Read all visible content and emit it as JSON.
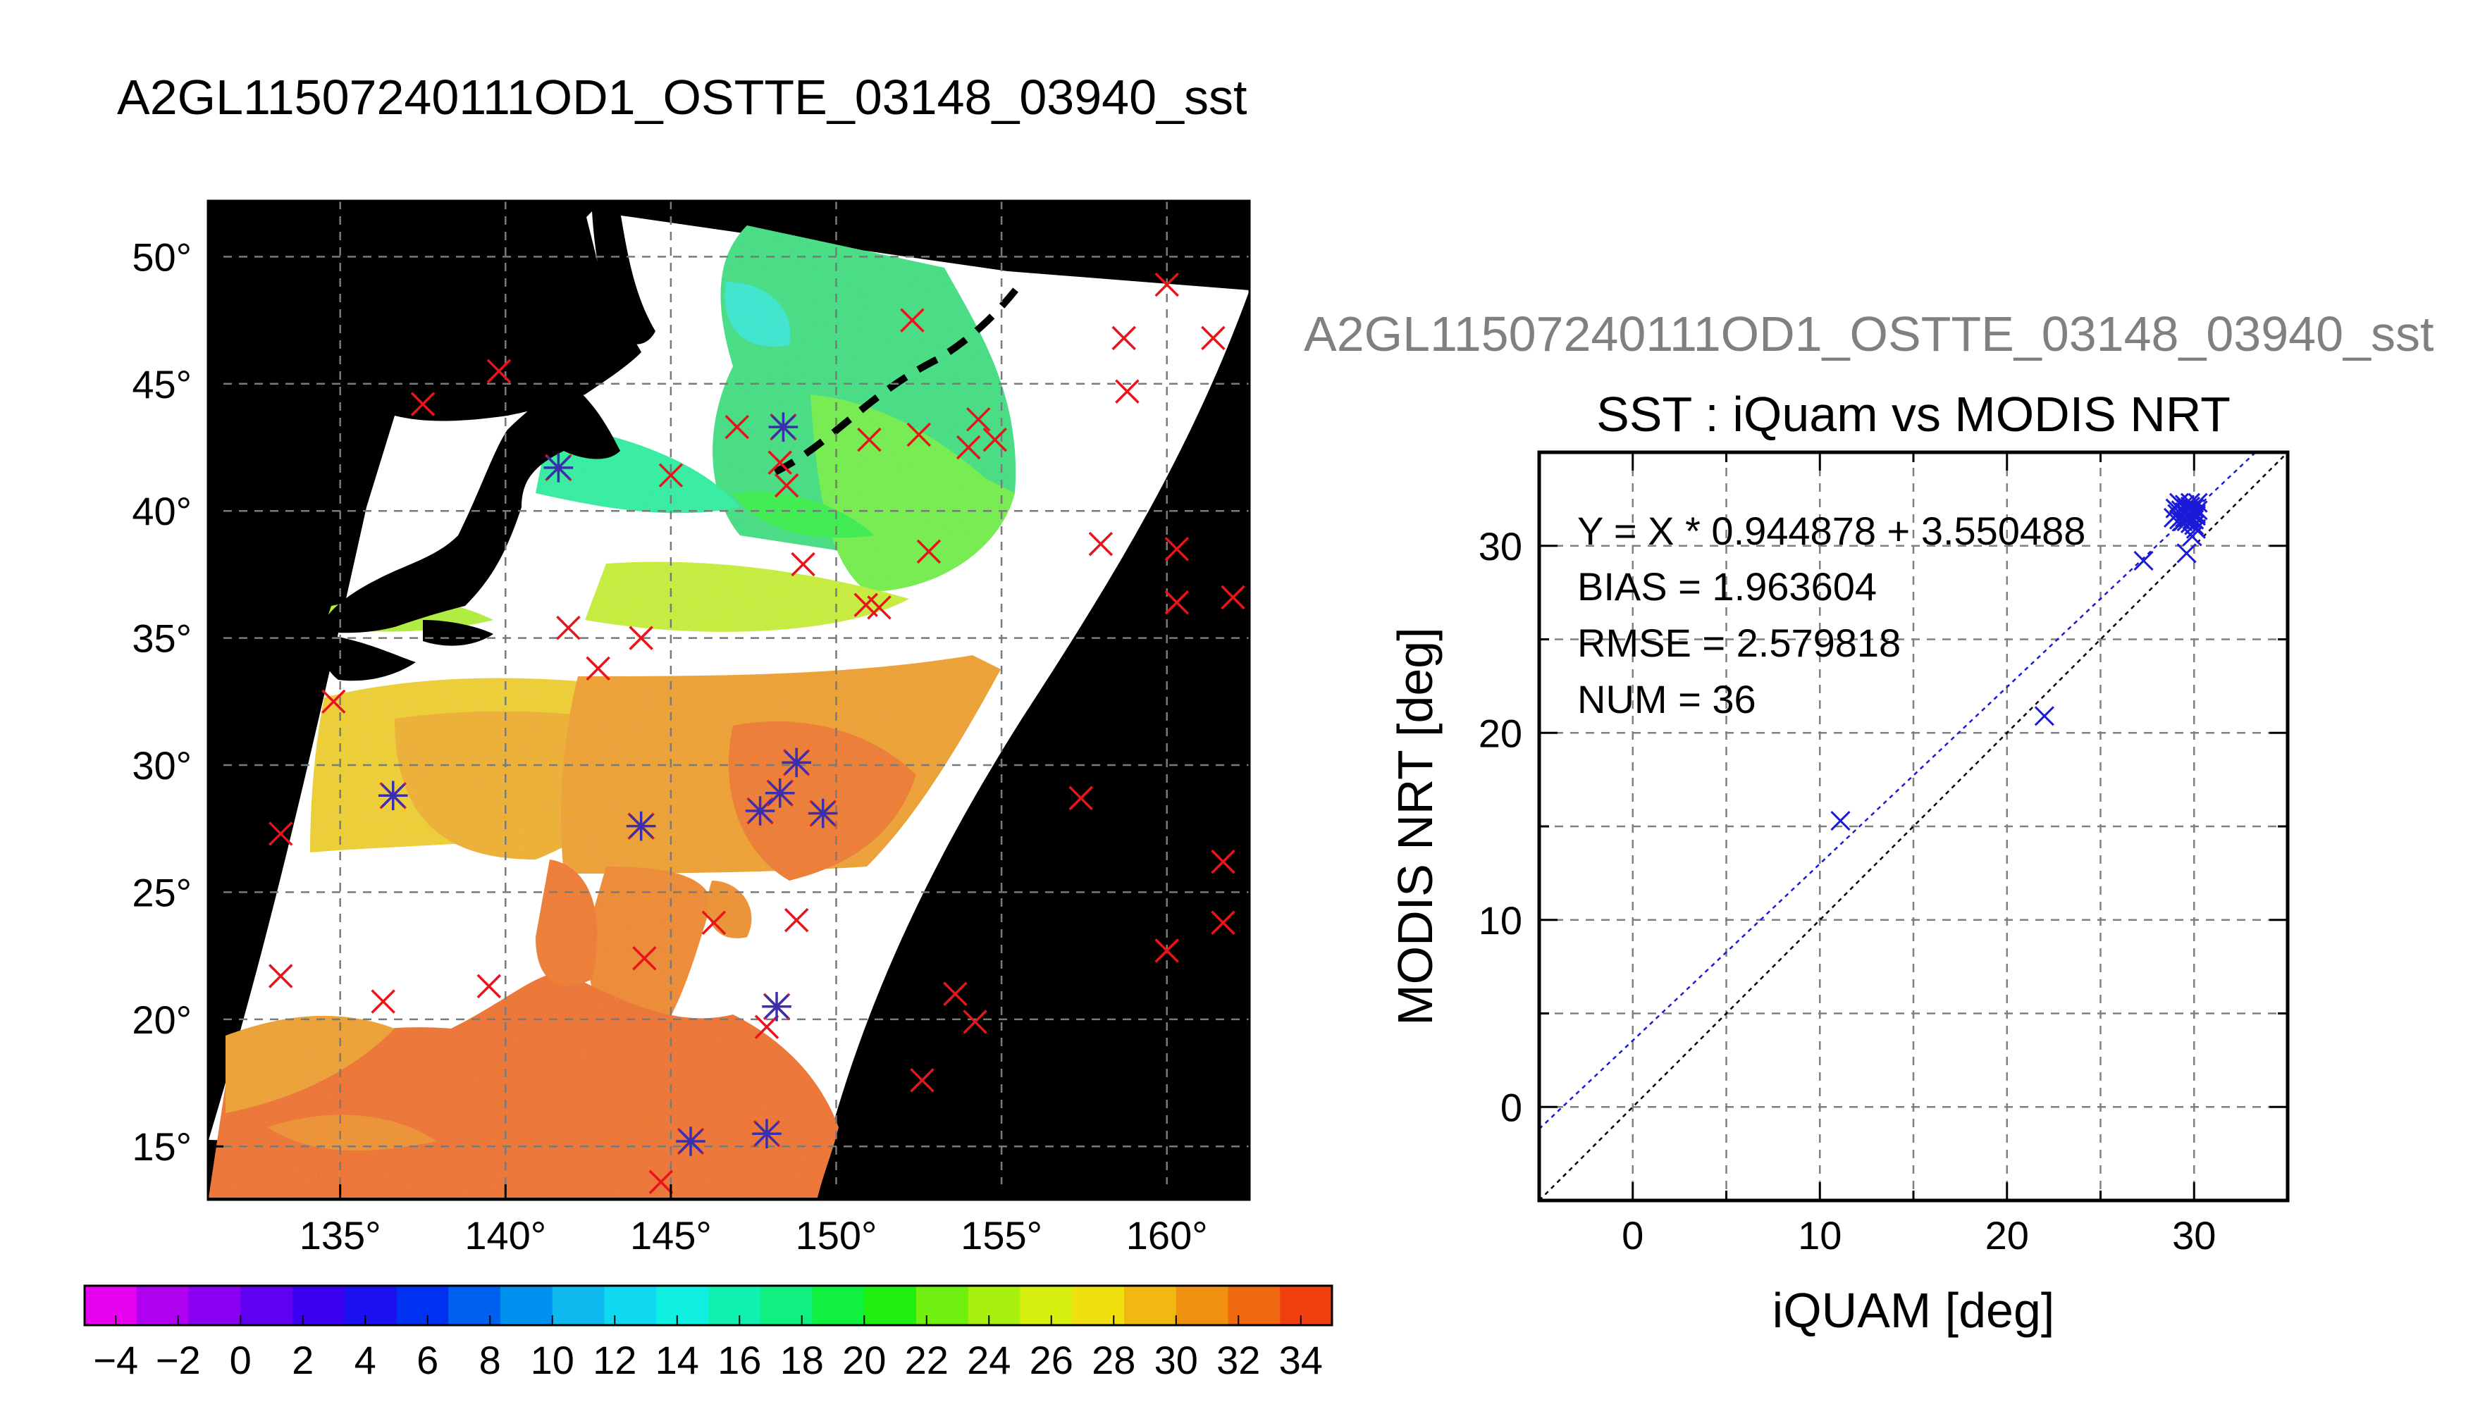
{
  "page": {
    "title": "A2GL11507240111OD1_OSTTE_03148_03940_sst",
    "subtitle_gray": "A2GL11507240111OD1_OSTTE_03148_03940_sst"
  },
  "colors": {
    "ocean_black": "#000000",
    "cloud_white": "#ffffff",
    "iquam_only_marker": "#e8141b",
    "matched_marker": "#3a2fae",
    "fit_line": "#1a1ad8",
    "identity_line": "#000000",
    "gray_text": "#808080"
  },
  "chart_data": [
    {
      "type": "map",
      "xlabel": "",
      "ylabel": "",
      "lon_range": [
        131,
        162.5
      ],
      "lat_range": [
        12.9,
        52.2
      ],
      "lon_ticks": [
        135,
        140,
        145,
        150,
        155,
        160
      ],
      "lat_ticks": [
        15,
        20,
        25,
        30,
        35,
        40,
        45,
        50
      ],
      "lon_tick_labels": [
        "135°",
        "140°",
        "145°",
        "150°",
        "155°",
        "160°"
      ],
      "lat_tick_labels": [
        "15°",
        "20°",
        "25°",
        "30°",
        "35°",
        "40°",
        "45°",
        "50°"
      ],
      "grid": true,
      "colorbar": {
        "ticks": [
          -4,
          -2,
          0,
          2,
          4,
          6,
          8,
          10,
          12,
          14,
          16,
          18,
          20,
          22,
          24,
          26,
          28,
          30,
          32,
          34
        ],
        "tick_labels": [
          "−4",
          "−2",
          "0",
          "2",
          "4",
          "6",
          "8",
          "10",
          "12",
          "14",
          "16",
          "18",
          "20",
          "22",
          "24",
          "26",
          "28",
          "30",
          "32",
          "34"
        ],
        "colors": [
          "#e800f0",
          "#b000f0",
          "#8a00f0",
          "#6000f0",
          "#3c00f0",
          "#1a10f0",
          "#0030f0",
          "#0060f0",
          "#0090f0",
          "#10b8f0",
          "#10d8f0",
          "#10f0e0",
          "#10f0b0",
          "#10f080",
          "#10f040",
          "#20f010",
          "#70f010",
          "#a8f010",
          "#d8f010",
          "#f0e010",
          "#f0b810",
          "#f09010",
          "#f06810",
          "#f04010"
        ]
      },
      "iquam_only_points": [
        [
          137.5,
          44.2
        ],
        [
          139.8,
          45.5
        ],
        [
          147,
          43.3
        ],
        [
          148.3,
          41.9
        ],
        [
          151,
          42.8
        ],
        [
          152.5,
          43
        ],
        [
          154,
          42.5
        ],
        [
          154.8,
          42.8
        ],
        [
          154.3,
          43.6
        ],
        [
          152.3,
          47.5
        ],
        [
          158.7,
          46.8
        ],
        [
          160,
          48.9
        ],
        [
          161.4,
          46.8
        ],
        [
          158.8,
          44.7
        ],
        [
          145,
          41.4
        ],
        [
          148.5,
          41
        ],
        [
          149,
          37.9
        ],
        [
          150.9,
          36.3
        ],
        [
          151.3,
          36.2
        ],
        [
          152.8,
          38.4
        ],
        [
          158,
          38.7
        ],
        [
          160.3,
          38.5
        ],
        [
          160.3,
          36.4
        ],
        [
          162,
          36.6
        ],
        [
          141.9,
          35.4
        ],
        [
          144.1,
          35
        ],
        [
          142.8,
          33.8
        ],
        [
          134.8,
          32.5
        ],
        [
          133.2,
          27.3
        ],
        [
          157.4,
          28.7
        ],
        [
          161.7,
          26.2
        ],
        [
          161.7,
          23.8
        ],
        [
          160,
          22.7
        ],
        [
          146.3,
          23.8
        ],
        [
          148.8,
          23.9
        ],
        [
          144.2,
          22.4
        ],
        [
          133.2,
          21.7
        ],
        [
          136.3,
          20.7
        ],
        [
          139.5,
          21.3
        ],
        [
          153.6,
          21
        ],
        [
          154.2,
          19.9
        ],
        [
          147.9,
          19.7
        ],
        [
          152.6,
          17.6
        ],
        [
          144.7,
          13.6
        ]
      ],
      "matched_points": [
        [
          141.6,
          41.7
        ],
        [
          148.4,
          43.3
        ],
        [
          136.6,
          28.8
        ],
        [
          144.1,
          27.6
        ],
        [
          147.7,
          28.2
        ],
        [
          148.3,
          28.9
        ],
        [
          148.8,
          30.1
        ],
        [
          149.6,
          28.1
        ],
        [
          148.2,
          20.5
        ],
        [
          145.6,
          15.2
        ],
        [
          147.9,
          15.5
        ]
      ]
    },
    {
      "type": "scatter",
      "title": "SST : iQuam vs MODIS NRT",
      "xlabel": "iQUAM [deg]",
      "ylabel": "MODIS NRT [deg]",
      "xlim": [
        -5,
        35
      ],
      "ylim": [
        -5,
        35
      ],
      "xticks": [
        0,
        10,
        20,
        30
      ],
      "yticks": [
        0,
        10,
        20,
        30
      ],
      "grid": true,
      "fit": {
        "slope": 0.944878,
        "intercept": 3.550488
      },
      "stats": [
        "Y = X * 0.944878 + 3.550488",
        "BIAS = 1.963604",
        "RMSE = 2.579818",
        "NUM = 36"
      ],
      "points": [
        [
          11.1,
          15.3
        ],
        [
          22.0,
          20.9
        ],
        [
          27.3,
          29.2
        ],
        [
          28.9,
          31.5
        ],
        [
          29.0,
          32.0
        ],
        [
          29.2,
          32.3
        ],
        [
          29.4,
          31.6
        ],
        [
          29.5,
          32.2
        ],
        [
          29.6,
          31.3
        ],
        [
          29.7,
          31.9
        ],
        [
          29.8,
          32.1
        ],
        [
          29.9,
          31.4
        ],
        [
          30.0,
          32.0
        ],
        [
          30.1,
          31.6
        ],
        [
          30.2,
          31.9
        ],
        [
          29.6,
          29.6
        ],
        [
          29.9,
          30.5
        ],
        [
          30.1,
          30.9
        ],
        [
          29.3,
          31.9
        ],
        [
          29.6,
          32.0
        ],
        [
          29.8,
          31.2
        ],
        [
          30.2,
          32.3
        ],
        [
          29.1,
          31.7
        ],
        [
          29.5,
          31.8
        ],
        [
          29.7,
          31.5
        ],
        [
          29.9,
          31.7
        ],
        [
          30.0,
          31.1
        ],
        [
          29.4,
          31.3
        ],
        [
          29.8,
          32.3
        ],
        [
          30.1,
          31.7
        ],
        [
          29.6,
          31.6
        ],
        [
          29.2,
          31.4
        ],
        [
          29.9,
          31.9
        ],
        [
          30.0,
          31.4
        ],
        [
          29.5,
          31.5
        ],
        [
          29.8,
          31.8
        ]
      ]
    }
  ]
}
